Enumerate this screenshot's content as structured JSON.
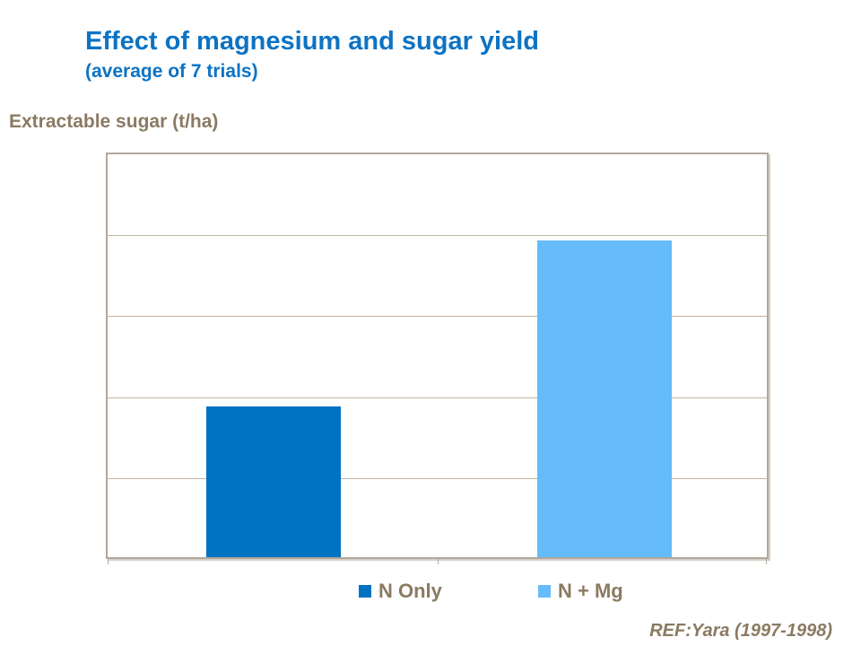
{
  "header": {
    "title": "Effect of magnesium and sugar yield",
    "subtitle": "(average of 7 trials)"
  },
  "footer": {
    "reference": "REF:Yara (1997-1998)"
  },
  "colors": {
    "title_blue": "#0c73c4",
    "text_brown": "#8b7a62",
    "plot_border": "#b3a79a",
    "gridline": "#c0b4a6",
    "bar_n_only": "#0072c2",
    "bar_n_mg": "#66bbfa"
  },
  "chart_data": {
    "type": "bar",
    "title": "Effect of magnesium and sugar yield",
    "subtitle": "(average of 7 trials)",
    "ylabel": "Extractable sugar (t/ha)",
    "xlabel": "",
    "categories": [
      "N Only",
      "N + Mg"
    ],
    "values": [
      10.37,
      10.78
    ],
    "series_colors": [
      "#0072c2",
      "#66bbfa"
    ],
    "ylim": [
      10,
      11
    ],
    "yticks": [
      10,
      10.2,
      10.4,
      10.6,
      10.8,
      11
    ],
    "ytick_labels": [
      "10",
      "10.2",
      "10.4",
      "10.6",
      "10.8",
      "11"
    ],
    "grid": true,
    "legend_position": "bottom",
    "annotation": "REF:Yara (1997-1998)"
  },
  "legend": {
    "entries": [
      {
        "label": "N Only",
        "color": "#0072c2"
      },
      {
        "label": "N + Mg",
        "color": "#66bbfa"
      }
    ]
  }
}
